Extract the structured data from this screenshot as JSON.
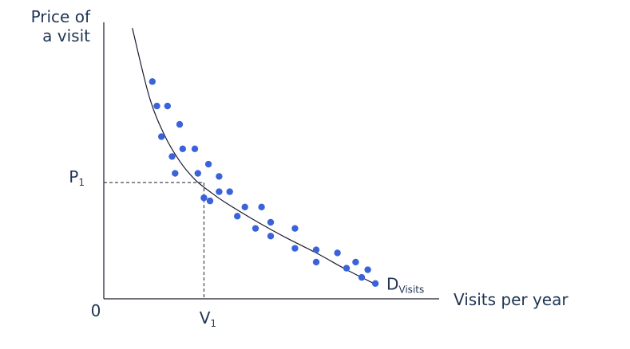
{
  "chart_data": {
    "type": "scatter",
    "title": "",
    "xlabel": "Visits per year",
    "ylabel_lines": [
      "Price of",
      "a visit"
    ],
    "origin_label": "0",
    "xlim": [
      0,
      10
    ],
    "ylim": [
      0,
      10
    ],
    "grid": false,
    "legend": "none",
    "colors": {
      "points": "#3b63d9",
      "curve": "#1a1a2e",
      "axes": "#1a1a2e",
      "text": "#1f3552"
    },
    "curve": {
      "label": "D",
      "label_subscript": "Visits",
      "x": [
        0.94,
        1.5,
        2.0,
        2.5,
        3.0,
        3.5,
        4.0,
        5.0,
        6.0,
        7.0,
        8.0,
        9.0
      ],
      "y": [
        8.85,
        6.6,
        5.35,
        4.5,
        3.9,
        3.5,
        3.15,
        2.55,
        2.0,
        1.5,
        0.95,
        0.45
      ]
    },
    "reference": {
      "x": 3.3,
      "y": 3.8,
      "x_label": "V",
      "x_label_subscript": "1",
      "y_label": "P",
      "y_label_subscript": "1"
    },
    "points": {
      "x": [
        1.6,
        1.75,
        2.1,
        1.9,
        2.5,
        2.25,
        2.6,
        2.35,
        3.0,
        3.45,
        3.1,
        3.8,
        3.3,
        3.8,
        4.15,
        3.5,
        4.65,
        5.2,
        4.4,
        5.0,
        5.5,
        5.5,
        6.3,
        6.3,
        7.0,
        7.7,
        7.0,
        8.3,
        8.0,
        8.5,
        8.7,
        8.95
      ],
      "y": [
        7.1,
        6.3,
        6.3,
        5.3,
        5.7,
        4.65,
        4.9,
        4.1,
        4.9,
        4.4,
        4.1,
        4.0,
        3.3,
        3.5,
        3.5,
        3.2,
        3.0,
        3.0,
        2.7,
        2.3,
        2.5,
        2.05,
        2.3,
        1.65,
        1.6,
        1.5,
        1.2,
        1.2,
        1.0,
        0.7,
        0.95,
        0.5
      ]
    }
  }
}
